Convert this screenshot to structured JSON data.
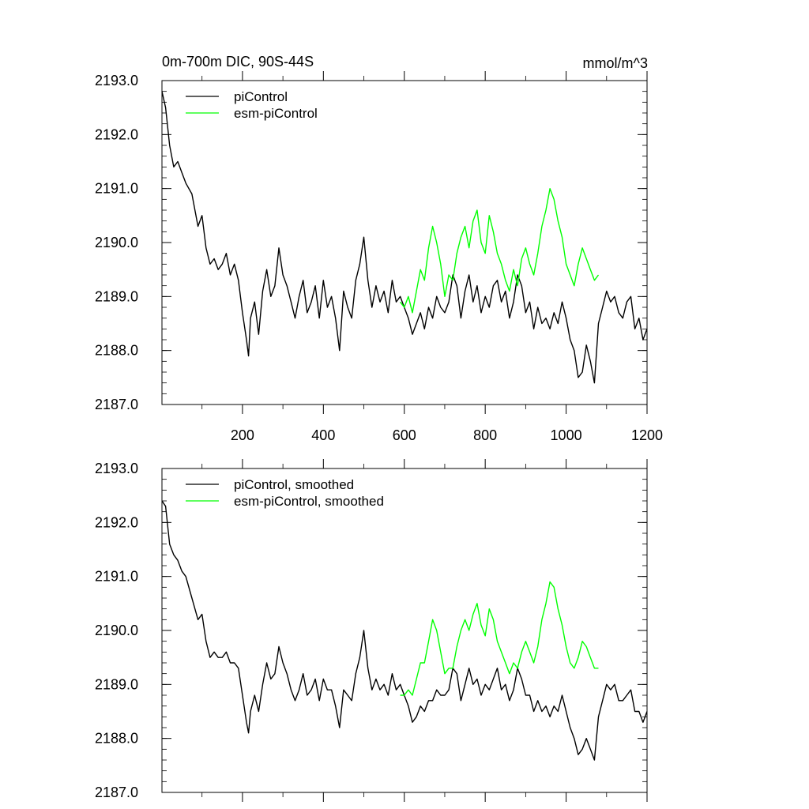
{
  "chart_data": [
    {
      "type": "line",
      "title": "0m-700m DIC, 90S-44S",
      "units": "mmol/m^3",
      "xlim": [
        1,
        1200
      ],
      "ylim": [
        2187.0,
        2193.0
      ],
      "xticks": [
        200,
        400,
        600,
        800,
        1000,
        1200
      ],
      "xtick_labels": [
        "200",
        "400",
        "600",
        "800",
        "1000",
        "1200"
      ],
      "yticks": [
        2187.0,
        2188.0,
        2189.0,
        2190.0,
        2191.0,
        2192.0,
        2193.0
      ],
      "ytick_labels": [
        "2187.0",
        "2188.0",
        "2189.0",
        "2190.0",
        "2191.0",
        "2192.0",
        "2193.0"
      ],
      "legend_position": "top-left",
      "series": [
        {
          "name": "piControl",
          "color": "#000000",
          "x": [
            1,
            10,
            20,
            30,
            40,
            50,
            60,
            75,
            90,
            100,
            110,
            120,
            130,
            140,
            150,
            160,
            170,
            180,
            190,
            200,
            210,
            215,
            220,
            230,
            240,
            250,
            260,
            270,
            280,
            290,
            300,
            310,
            320,
            330,
            340,
            350,
            360,
            370,
            380,
            390,
            400,
            410,
            420,
            430,
            440,
            450,
            460,
            470,
            480,
            490,
            500,
            510,
            520,
            530,
            540,
            550,
            560,
            570,
            580,
            590,
            600,
            610,
            620,
            630,
            640,
            650,
            660,
            670,
            680,
            690,
            700,
            710,
            720,
            730,
            740,
            750,
            760,
            770,
            780,
            790,
            800,
            810,
            820,
            830,
            840,
            850,
            860,
            870,
            880,
            890,
            900,
            910,
            920,
            930,
            940,
            950,
            960,
            970,
            980,
            990,
            1000,
            1010,
            1020,
            1030,
            1040,
            1050,
            1060,
            1070,
            1080,
            1090,
            1100,
            1110,
            1120,
            1130,
            1140,
            1150,
            1160,
            1170,
            1180,
            1190,
            1200
          ],
          "values": [
            2192.8,
            2192.5,
            2191.8,
            2191.4,
            2191.5,
            2191.3,
            2191.1,
            2190.9,
            2190.3,
            2190.5,
            2189.9,
            2189.6,
            2189.7,
            2189.5,
            2189.6,
            2189.8,
            2189.4,
            2189.6,
            2189.3,
            2188.7,
            2188.2,
            2187.9,
            2188.6,
            2188.9,
            2188.3,
            2189.1,
            2189.5,
            2189.0,
            2189.2,
            2189.9,
            2189.4,
            2189.2,
            2188.9,
            2188.6,
            2189.0,
            2189.3,
            2188.7,
            2188.9,
            2189.2,
            2188.6,
            2189.3,
            2188.8,
            2189.0,
            2188.6,
            2188.0,
            2189.1,
            2188.8,
            2188.6,
            2189.3,
            2189.6,
            2190.1,
            2189.3,
            2188.8,
            2189.2,
            2188.9,
            2189.1,
            2188.7,
            2189.3,
            2188.9,
            2189.0,
            2188.8,
            2188.6,
            2188.3,
            2188.5,
            2188.7,
            2188.4,
            2188.8,
            2188.6,
            2189.0,
            2188.8,
            2188.7,
            2188.9,
            2189.4,
            2189.2,
            2188.6,
            2189.1,
            2189.4,
            2188.9,
            2189.2,
            2188.7,
            2189.0,
            2188.8,
            2189.2,
            2189.3,
            2188.9,
            2189.1,
            2188.6,
            2188.9,
            2189.4,
            2189.2,
            2188.7,
            2188.9,
            2188.4,
            2188.8,
            2188.5,
            2188.6,
            2188.4,
            2188.7,
            2188.5,
            2188.9,
            2188.6,
            2188.2,
            2188.0,
            2187.5,
            2187.6,
            2188.1,
            2187.8,
            2187.4,
            2188.5,
            2188.8,
            2189.1,
            2188.9,
            2189.0,
            2188.7,
            2188.6,
            2188.9,
            2189.0,
            2188.4,
            2188.6,
            2188.2,
            2188.4
          ]
        },
        {
          "name": "esm-piControl",
          "color": "#00ff00",
          "x": [
            590,
            600,
            610,
            620,
            630,
            640,
            650,
            660,
            670,
            680,
            690,
            700,
            710,
            720,
            730,
            740,
            750,
            760,
            770,
            780,
            790,
            800,
            810,
            820,
            830,
            840,
            850,
            860,
            870,
            880,
            890,
            900,
            910,
            920,
            930,
            940,
            950,
            960,
            970,
            980,
            990,
            1000,
            1010,
            1020,
            1030,
            1040,
            1050,
            1060,
            1070,
            1080
          ],
          "values": [
            2188.9,
            2188.8,
            2189.0,
            2188.7,
            2189.1,
            2189.5,
            2189.3,
            2189.9,
            2190.3,
            2190.0,
            2189.6,
            2189.0,
            2189.4,
            2189.3,
            2189.8,
            2190.1,
            2190.3,
            2189.9,
            2190.4,
            2190.6,
            2190.0,
            2189.8,
            2190.5,
            2190.2,
            2189.8,
            2189.6,
            2189.3,
            2189.1,
            2189.5,
            2189.2,
            2189.7,
            2189.9,
            2189.6,
            2189.4,
            2189.8,
            2190.3,
            2190.6,
            2191.0,
            2190.8,
            2190.4,
            2190.1,
            2189.6,
            2189.4,
            2189.2,
            2189.6,
            2189.9,
            2189.7,
            2189.5,
            2189.3,
            2189.4
          ]
        }
      ]
    },
    {
      "type": "line",
      "title": "",
      "xlim": [
        1,
        1200
      ],
      "ylim": [
        2187.0,
        2193.0
      ],
      "yticks": [
        2187.0,
        2188.0,
        2189.0,
        2190.0,
        2191.0,
        2192.0,
        2193.0
      ],
      "ytick_labels": [
        "2187.0",
        "2188.0",
        "2189.0",
        "2190.0",
        "2191.0",
        "2192.0",
        "2193.0"
      ],
      "xticks": [
        200,
        400,
        600,
        800,
        1000,
        1200
      ],
      "xtick_labels": [],
      "legend_position": "top-left",
      "series": [
        {
          "name": "piControl, smoothed",
          "color": "#000000",
          "x": [
            1,
            10,
            20,
            30,
            40,
            50,
            60,
            75,
            90,
            100,
            110,
            120,
            130,
            140,
            150,
            160,
            170,
            180,
            190,
            200,
            210,
            215,
            220,
            230,
            240,
            250,
            260,
            270,
            280,
            290,
            300,
            310,
            320,
            330,
            340,
            350,
            360,
            370,
            380,
            390,
            400,
            410,
            420,
            430,
            440,
            450,
            460,
            470,
            480,
            490,
            500,
            510,
            520,
            530,
            540,
            550,
            560,
            570,
            580,
            590,
            600,
            610,
            620,
            630,
            640,
            650,
            660,
            670,
            680,
            690,
            700,
            710,
            720,
            730,
            740,
            750,
            760,
            770,
            780,
            790,
            800,
            810,
            820,
            830,
            840,
            850,
            860,
            870,
            880,
            890,
            900,
            910,
            920,
            930,
            940,
            950,
            960,
            970,
            980,
            990,
            1000,
            1010,
            1020,
            1030,
            1040,
            1050,
            1060,
            1070,
            1080,
            1090,
            1100,
            1110,
            1120,
            1130,
            1140,
            1150,
            1160,
            1170,
            1180,
            1190,
            1200
          ],
          "values": [
            2192.4,
            2192.3,
            2191.6,
            2191.4,
            2191.3,
            2191.1,
            2191.0,
            2190.6,
            2190.2,
            2190.3,
            2189.8,
            2189.5,
            2189.6,
            2189.5,
            2189.5,
            2189.6,
            2189.4,
            2189.4,
            2189.3,
            2188.8,
            2188.3,
            2188.1,
            2188.5,
            2188.8,
            2188.5,
            2189.0,
            2189.4,
            2189.1,
            2189.2,
            2189.7,
            2189.4,
            2189.2,
            2188.9,
            2188.7,
            2188.9,
            2189.2,
            2188.8,
            2188.9,
            2189.1,
            2188.7,
            2189.1,
            2188.9,
            2188.9,
            2188.6,
            2188.2,
            2188.9,
            2188.8,
            2188.7,
            2189.2,
            2189.5,
            2190.0,
            2189.3,
            2188.9,
            2189.1,
            2188.9,
            2189.0,
            2188.8,
            2189.2,
            2188.9,
            2189.0,
            2188.8,
            2188.6,
            2188.3,
            2188.4,
            2188.6,
            2188.5,
            2188.7,
            2188.7,
            2188.9,
            2188.8,
            2188.8,
            2188.9,
            2189.3,
            2189.2,
            2188.7,
            2189.0,
            2189.3,
            2189.0,
            2189.1,
            2188.8,
            2189.0,
            2188.9,
            2189.1,
            2189.3,
            2188.9,
            2189.0,
            2188.7,
            2188.9,
            2189.3,
            2189.1,
            2188.8,
            2188.8,
            2188.5,
            2188.7,
            2188.5,
            2188.6,
            2188.4,
            2188.6,
            2188.5,
            2188.8,
            2188.5,
            2188.2,
            2188.0,
            2187.7,
            2187.8,
            2188.0,
            2187.8,
            2187.6,
            2188.4,
            2188.7,
            2189.0,
            2188.9,
            2189.0,
            2188.7,
            2188.7,
            2188.8,
            2188.9,
            2188.5,
            2188.5,
            2188.3,
            2188.5
          ]
        },
        {
          "name": "esm-piControl, smoothed",
          "color": "#00ff00",
          "x": [
            590,
            600,
            610,
            620,
            630,
            640,
            650,
            660,
            670,
            680,
            690,
            700,
            710,
            720,
            730,
            740,
            750,
            760,
            770,
            780,
            790,
            800,
            810,
            820,
            830,
            840,
            850,
            860,
            870,
            880,
            890,
            900,
            910,
            920,
            930,
            940,
            950,
            960,
            970,
            980,
            990,
            1000,
            1010,
            1020,
            1030,
            1040,
            1050,
            1060,
            1070,
            1080
          ],
          "values": [
            2188.8,
            2188.8,
            2188.9,
            2188.8,
            2189.1,
            2189.4,
            2189.4,
            2189.8,
            2190.2,
            2190.0,
            2189.6,
            2189.2,
            2189.3,
            2189.3,
            2189.7,
            2190.0,
            2190.2,
            2190.0,
            2190.3,
            2190.5,
            2190.1,
            2189.9,
            2190.4,
            2190.2,
            2189.8,
            2189.6,
            2189.4,
            2189.2,
            2189.4,
            2189.3,
            2189.6,
            2189.8,
            2189.6,
            2189.4,
            2189.7,
            2190.2,
            2190.5,
            2190.9,
            2190.8,
            2190.4,
            2190.1,
            2189.7,
            2189.4,
            2189.3,
            2189.5,
            2189.8,
            2189.7,
            2189.5,
            2189.3,
            2189.3
          ]
        }
      ]
    }
  ]
}
